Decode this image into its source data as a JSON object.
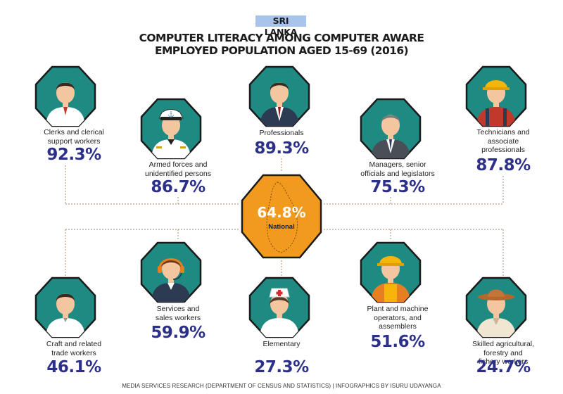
{
  "header": {
    "country": "SRI LANKA",
    "title_line1": "COMPUTER LITERACY AMONG COMPUTER AWARE",
    "title_line2": "EMPLOYED POPULATION AGED 15-69 (2016)"
  },
  "national": {
    "value_label": "64.8%",
    "label": "National",
    "value": 64.8
  },
  "footer": "MEDIA SERVICES RESEARCH (DEPARTMENT OF CENSUS AND STATISTICS) | INFOGRAPHICS BY ISURU UDAYANGA",
  "chart_data": {
    "type": "table",
    "title": "COMPUTER LITERACY AMONG COMPUTER AWARE EMPLOYED POPULATION AGED 15-69 (2016)",
    "categories": [
      "Clerks and clerical support workers",
      "Armed forces and unidentified persons",
      "Professionals",
      "Managers, senior officials and legislators",
      "Technicians and associate professionals",
      "Craft and related trade workers",
      "Services and sales workers",
      "Elementary",
      "Plant and machine operators, and assemblers",
      "Skilled agricultural, forestry and fishery workers"
    ],
    "values": [
      92.3,
      86.7,
      89.3,
      75.3,
      87.8,
      46.1,
      59.9,
      27.3,
      51.6,
      24.7
    ],
    "national": 64.8,
    "occupations": [
      {
        "id": "clerks",
        "label_lines": [
          "Clerks and clerical",
          "support workers"
        ],
        "value": 92.3,
        "value_label": "92.3%",
        "icon": "clerk-icon"
      },
      {
        "id": "armed-forces",
        "label_lines": [
          "Armed forces and",
          "unidentified persons"
        ],
        "value": 86.7,
        "value_label": "86.7%",
        "icon": "navy-officer-icon"
      },
      {
        "id": "professionals",
        "label_lines": [
          "Professionals"
        ],
        "value": 89.3,
        "value_label": "89.3%",
        "icon": "professional-icon"
      },
      {
        "id": "managers",
        "label_lines": [
          "Managers, senior",
          "officials and legislators"
        ],
        "value": 75.3,
        "value_label": "75.3%",
        "icon": "manager-icon"
      },
      {
        "id": "technicians",
        "label_lines": [
          "Technicians and",
          "associate",
          "professionals"
        ],
        "value": 87.8,
        "value_label": "87.8%",
        "icon": "hardhat-worker-icon"
      },
      {
        "id": "craft",
        "label_lines": [
          "Craft and related",
          "trade workers"
        ],
        "value": 46.1,
        "value_label": "46.1%",
        "icon": "craft-worker-icon"
      },
      {
        "id": "services",
        "label_lines": [
          "Services and",
          "sales workers"
        ],
        "value": 59.9,
        "value_label": "59.9%",
        "icon": "headset-agent-icon"
      },
      {
        "id": "elementary",
        "label_lines": [
          "Elementary"
        ],
        "value": 27.3,
        "value_label": "27.3%",
        "icon": "nurse-icon"
      },
      {
        "id": "plant",
        "label_lines": [
          "Plant and machine",
          "operators, and",
          "assemblers"
        ],
        "value": 51.6,
        "value_label": "51.6%",
        "icon": "machine-operator-icon"
      },
      {
        "id": "agri",
        "label_lines": [
          "Skilled agricultural,",
          "forestry and",
          "fishery workers"
        ],
        "value": 24.7,
        "value_label": "24.7%",
        "icon": "farmer-icon"
      }
    ]
  },
  "colors": {
    "hex_fill": "#1f8a82",
    "national_fill": "#f29a1d",
    "percent_text": "#2d3089",
    "connector": "#b08a6a"
  }
}
